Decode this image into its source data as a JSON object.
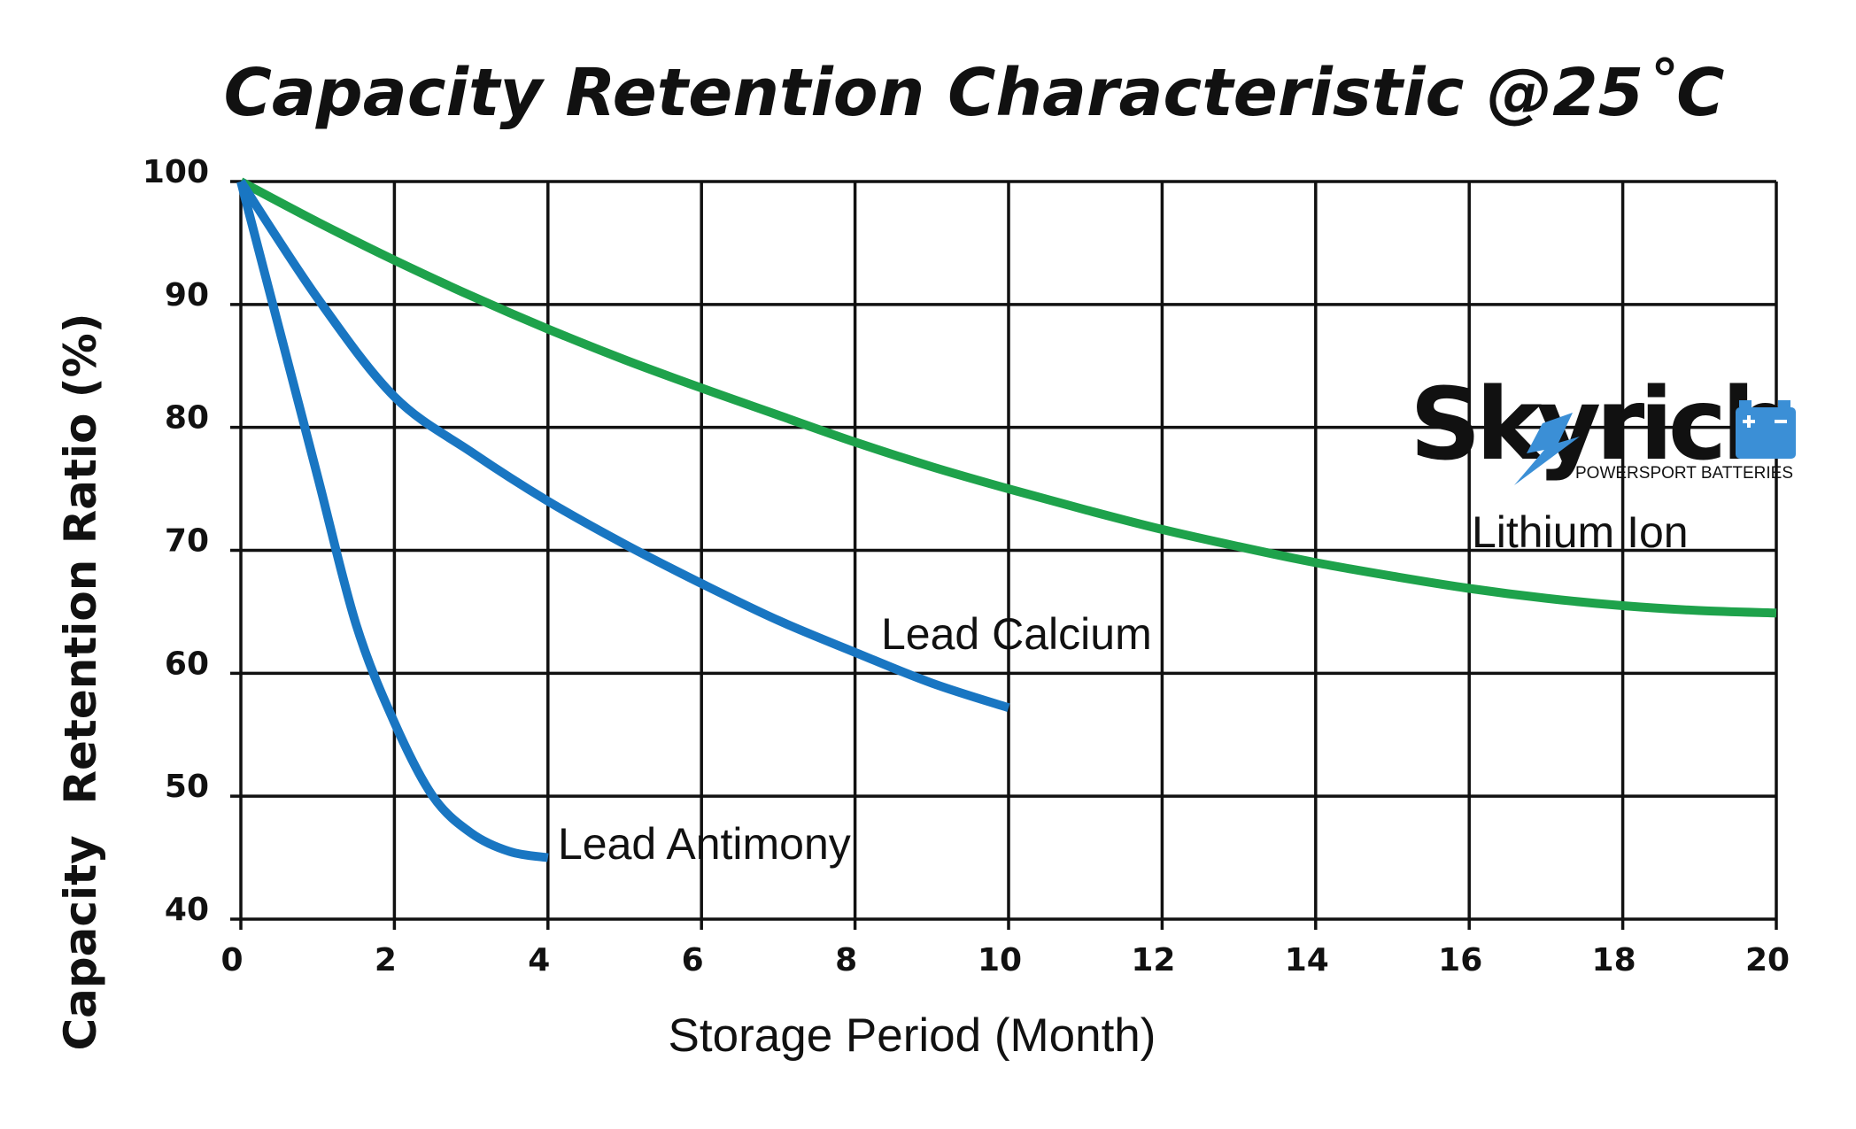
{
  "chart_data": {
    "type": "line",
    "title": "Capacity Retention Characteristic @25˚C",
    "xlabel": "Storage Period (Month)",
    "ylabel": "Capacity  Retention Ratio (%)",
    "xlim": [
      0,
      20
    ],
    "ylim": [
      40,
      100
    ],
    "x_ticks": [
      0,
      2,
      4,
      6,
      8,
      10,
      12,
      14,
      16,
      18,
      20
    ],
    "y_ticks": [
      40,
      50,
      60,
      70,
      80,
      90,
      100
    ],
    "grid": true,
    "series": [
      {
        "name": "Lithium Ion",
        "color": "#1ea24b",
        "x": [
          0,
          1,
          2,
          3,
          4,
          5,
          6,
          7,
          8,
          9,
          10,
          11,
          12,
          13,
          14,
          15,
          16,
          17,
          18,
          19,
          20
        ],
        "y": [
          100,
          96.7,
          93.6,
          90.7,
          88,
          85.5,
          83.2,
          81,
          78.8,
          76.8,
          75,
          73.3,
          71.7,
          70.3,
          69,
          67.9,
          66.9,
          66.1,
          65.5,
          65.1,
          64.9
        ]
      },
      {
        "name": "Lead Calcium",
        "color": "#1976c2",
        "x": [
          0,
          1,
          2,
          3,
          4,
          5,
          6,
          7,
          8,
          9,
          10
        ],
        "y": [
          100,
          90.5,
          82.5,
          78,
          74,
          70.5,
          67.3,
          64.3,
          61.7,
          59.2,
          57.2
        ]
      },
      {
        "name": "Lead Antimony",
        "color": "#1976c2",
        "x": [
          0,
          0.5,
          1,
          1.5,
          2,
          2.5,
          3,
          3.5,
          4
        ],
        "y": [
          100,
          88,
          76,
          64,
          56,
          50,
          47,
          45.5,
          45
        ]
      }
    ]
  },
  "legend_labels": {
    "lithium_ion": "Lithium Ion",
    "lead_calcium": "Lead Calcium",
    "lead_antimony": "Lead Antimony"
  },
  "logo": {
    "name": "Skyrich",
    "tagline": "POWERSPORT BATTERIES",
    "accent_color": "#3b8fd6"
  }
}
